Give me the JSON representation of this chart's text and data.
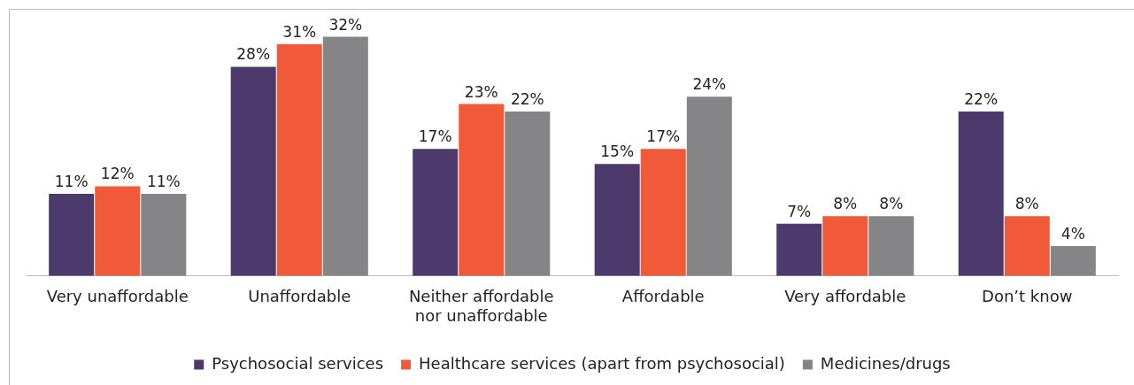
{
  "chart_data": {
    "type": "bar",
    "categories": [
      "Very unaffordable",
      "Unaffordable",
      "Neither affordable nor unaffordable",
      "Affordable",
      "Very affordable",
      "Don’t know"
    ],
    "series": [
      {
        "name": "Psychosocial services",
        "color": "#4b3a6b",
        "values": [
          11,
          28,
          17,
          15,
          7,
          22
        ],
        "value_labels": [
          "11%",
          "28%",
          "17%",
          "15%",
          "7%",
          "22%"
        ]
      },
      {
        "name": "Healthcare services (apart from psychosocial)",
        "color": "#f15a38",
        "values": [
          12,
          31,
          23,
          17,
          8,
          8
        ],
        "value_labels": [
          "12%",
          "31%",
          "23%",
          "17%",
          "8%",
          "8%"
        ]
      },
      {
        "name": "Medicines/drugs",
        "color": "#858588",
        "values": [
          11,
          32,
          22,
          24,
          8,
          4
        ],
        "value_labels": [
          "11%",
          "32%",
          "22%",
          "24%",
          "8%",
          "4%"
        ]
      }
    ],
    "legend": "bottom",
    "grid": false
  }
}
